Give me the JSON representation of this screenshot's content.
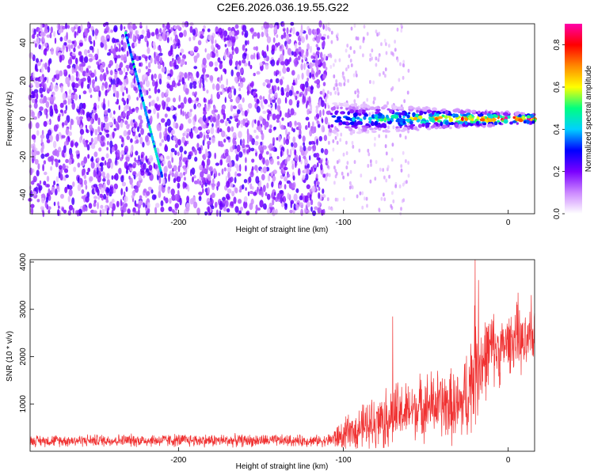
{
  "title": "C2E6.2026.036.19.55.G22",
  "chart_data": [
    {
      "type": "heatmap",
      "title": "C2E6.2026.036.19.55.G22",
      "xlabel": "Height of straight line (km)",
      "ylabel": "Frequency (Hz)",
      "xlim": [
        -290,
        16
      ],
      "ylim": [
        -50,
        50
      ],
      "xticks": [
        -200,
        -100,
        0
      ],
      "yticks": [
        -40,
        -20,
        0,
        20,
        40
      ],
      "colorbar": {
        "label": "Normalized spectral amplitude",
        "range": [
          0.0,
          0.9
        ],
        "ticks": [
          "0.0",
          "0.2",
          "0.4",
          "0.6",
          "0.8"
        ],
        "colors": [
          "#ffffff",
          "#cc88ff",
          "#7a00ff",
          "#0000ff",
          "#00d0ff",
          "#00ff80",
          "#ffff00",
          "#ff8800",
          "#ff0000",
          "#ff00aa"
        ]
      },
      "features": [
        {
          "name": "noise-field",
          "x_range": [
            -290,
            -110
          ],
          "freq_range": [
            -50,
            50
          ],
          "amplitude": 0.18
        },
        {
          "name": "sparse-noise",
          "x_range": [
            -110,
            -60
          ],
          "freq_range": [
            -50,
            50
          ],
          "amplitude": 0.04
        },
        {
          "name": "carrier-band",
          "x_range": [
            -110,
            16
          ],
          "freq_center": 0,
          "peak_amplitude": 0.85
        },
        {
          "name": "diagonal-track",
          "x": [
            -232,
            -210
          ],
          "freq": [
            45,
            -30
          ],
          "amplitude": 0.35
        }
      ]
    },
    {
      "type": "line",
      "xlabel": "Height of straight line (km)",
      "ylabel": "SNR (10 * v/v)",
      "xlim": [
        -290,
        16
      ],
      "ylim": [
        0,
        4050
      ],
      "xticks": [
        -200,
        -100,
        0
      ],
      "yticks": [
        1000,
        2000,
        3000,
        4000
      ],
      "series": [
        {
          "name": "SNR",
          "color": "#f03232",
          "envelope": {
            "x": [
              -290,
              -250,
              -200,
              -150,
              -110,
              -100,
              -90,
              -80,
              -70,
              -60,
              -50,
              -40,
              -30,
              -25,
              -20,
              -15,
              -10,
              -5,
              0,
              5,
              10,
              16
            ],
            "mean": [
              220,
              230,
              230,
              225,
              220,
              340,
              480,
              620,
              760,
              850,
              980,
              1000,
              900,
              1200,
              1800,
              1900,
              2200,
              2100,
              2300,
              2400,
              2200,
              2500
            ],
            "spread": [
              120,
              130,
              140,
              130,
              120,
              350,
              450,
              600,
              700,
              600,
              700,
              750,
              800,
              1000,
              1300,
              900,
              800,
              700,
              600,
              700,
              600,
              500
            ]
          },
          "peaks": [
            {
              "x": -70,
              "y": 2850
            },
            {
              "x": -20,
              "y": 4050
            },
            {
              "x": -18,
              "y": 3620
            },
            {
              "x": 6,
              "y": 3350
            },
            {
              "x": 14,
              "y": 3300
            }
          ]
        }
      ]
    }
  ]
}
